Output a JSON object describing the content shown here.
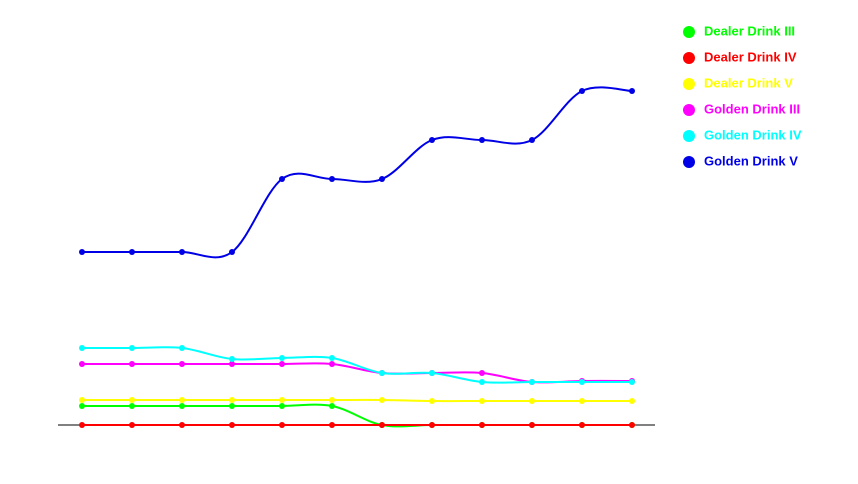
{
  "chart_data": {
    "type": "line",
    "smooth": true,
    "legend": "top-right",
    "categories": [
      null,
      null,
      null,
      null,
      null,
      null,
      null,
      null,
      null,
      null,
      null,
      null
    ],
    "ylim": [
      0,
      405
    ],
    "series": [
      {
        "name": "Dealer Drink III",
        "color": "#00ff00",
        "values": [
          19,
          19,
          19,
          19,
          19,
          19,
          0,
          0,
          0,
          0,
          0,
          0
        ]
      },
      {
        "name": "Dealer Drink IV",
        "color": "#ff0000",
        "values": [
          0,
          0,
          0,
          0,
          0,
          0,
          0,
          0,
          0,
          0,
          0,
          0
        ]
      },
      {
        "name": "Dealer Drink V",
        "color": "#ffff00",
        "values": [
          25,
          25,
          25,
          25,
          25,
          25,
          25,
          24,
          24,
          24,
          24,
          24
        ]
      },
      {
        "name": "Golden Drink III",
        "color": "#ff00ff",
        "values": [
          61,
          61,
          61,
          61,
          61,
          61,
          52,
          52,
          52,
          43,
          44,
          44
        ]
      },
      {
        "name": "Golden Drink IV",
        "color": "#00ffff",
        "values": [
          77,
          77,
          77,
          66,
          67,
          67,
          52,
          52,
          43,
          43,
          43,
          43
        ]
      },
      {
        "name": "Golden Drink V",
        "color": "#0000e6",
        "values": [
          173,
          173,
          173,
          173,
          246,
          246,
          246,
          285,
          285,
          285,
          334,
          334
        ]
      }
    ]
  }
}
